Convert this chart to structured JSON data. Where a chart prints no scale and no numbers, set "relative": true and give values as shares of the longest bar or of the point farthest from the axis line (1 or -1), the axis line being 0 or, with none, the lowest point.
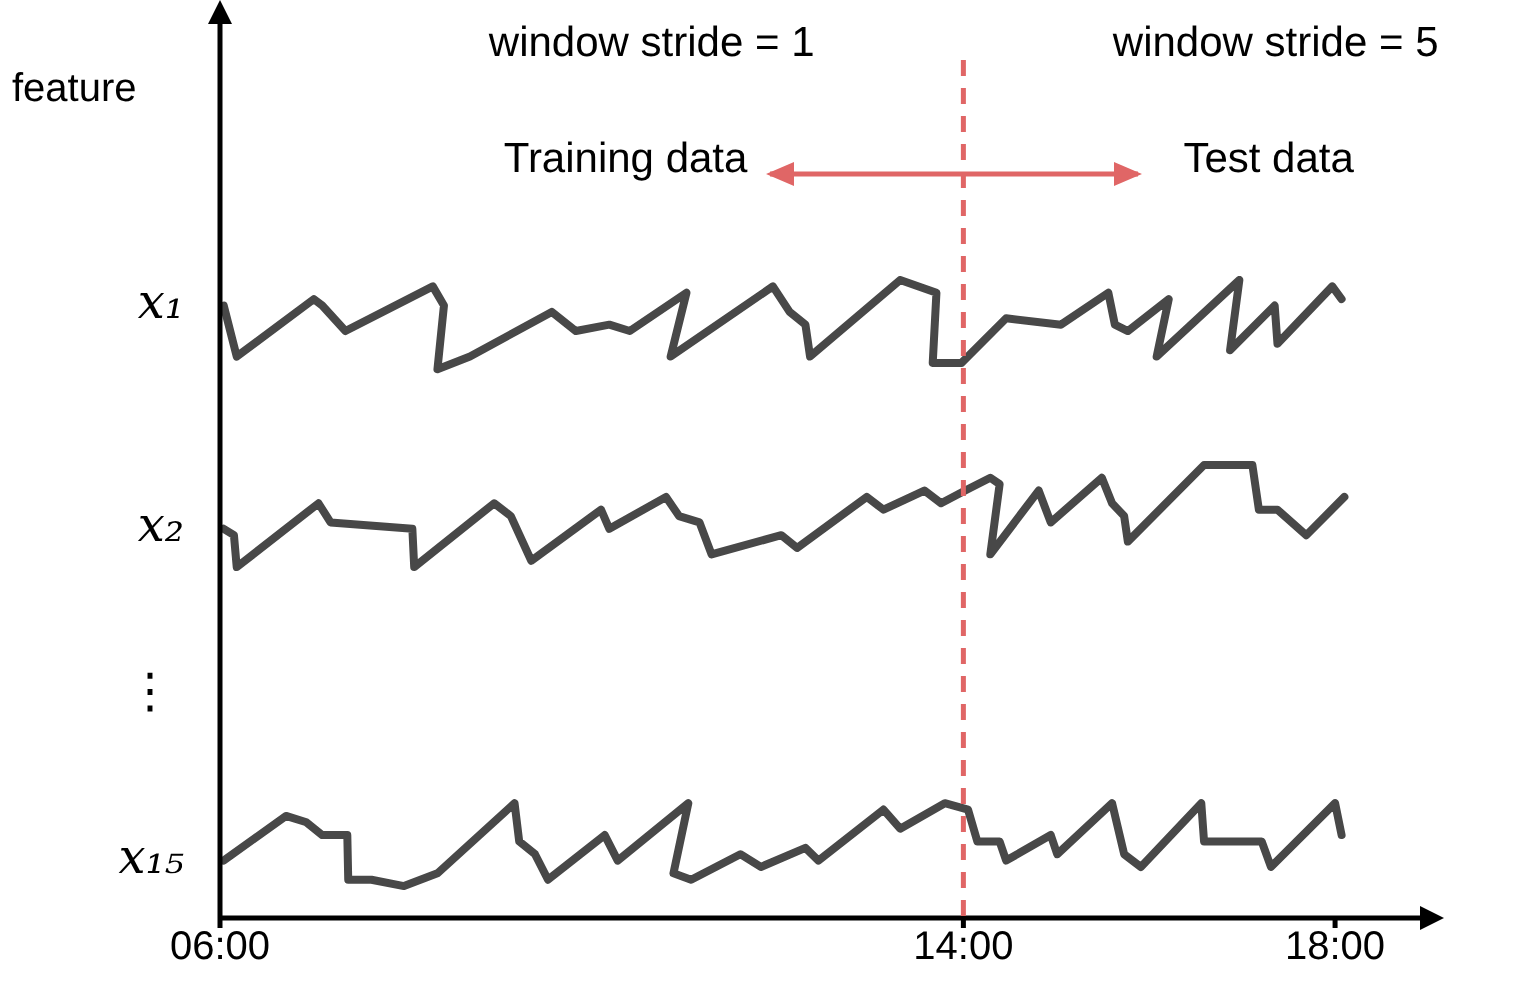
{
  "chart_data": {
    "type": "line",
    "relative": true,
    "ylabel": "feature",
    "xlim": [
      6,
      19
    ],
    "xticks": [
      {
        "value": 6,
        "label": "06:00"
      },
      {
        "value": 14,
        "label": "14:00"
      },
      {
        "value": 18,
        "label": "18:00"
      }
    ],
    "grid": false,
    "legend": false,
    "marker": "none",
    "line_style": "solid",
    "annotations": [
      "window stride = 1",
      "window stride = 5",
      "Training data",
      "Test data",
      "⋮"
    ],
    "ref_lines": [
      {
        "axis": "x",
        "value": 14,
        "label": null,
        "color": "#e06666",
        "line_style": "dashed"
      }
    ],
    "series": [
      {
        "name": "x₁",
        "color": "#484848",
        "x": [
          6.04,
          6.18,
          7.01,
          7.1,
          7.35,
          8.29,
          8.41,
          8.34,
          8.69,
          9.57,
          9.83,
          10.19,
          10.41,
          11.02,
          10.85,
          11.95,
          12.13,
          12.3,
          12.35,
          13.32,
          13.71,
          13.67,
          13.98,
          14.46,
          15.05,
          15.56,
          15.63,
          15.77,
          16.21,
          16.08,
          16.97,
          16.87,
          17.35,
          17.38,
          17.97,
          18.07
        ],
        "values": [
          0.96,
          0.88,
          0.97,
          0.96,
          0.92,
          0.99,
          0.96,
          0.86,
          0.88,
          0.95,
          0.92,
          0.93,
          0.92,
          0.98,
          0.88,
          0.99,
          0.95,
          0.93,
          0.88,
          1.0,
          0.98,
          0.87,
          0.87,
          0.94,
          0.93,
          0.98,
          0.93,
          0.92,
          0.97,
          0.88,
          1.0,
          0.89,
          0.96,
          0.9,
          0.99,
          0.97
        ]
      },
      {
        "name": "x₂",
        "color": "#484848",
        "x": [
          6.04,
          6.15,
          6.18,
          7.06,
          7.19,
          8.07,
          8.09,
          8.95,
          9.13,
          9.35,
          10.1,
          10.19,
          10.8,
          10.94,
          11.16,
          11.29,
          12.04,
          12.21,
          12.96,
          13.14,
          13.58,
          13.76,
          14.02,
          14.29,
          14.39,
          14.29,
          14.81,
          14.94,
          15.49,
          15.6,
          15.73,
          15.77,
          16.59,
          17.11,
          17.18,
          17.38,
          17.69,
          18.1
        ],
        "values": [
          0.61,
          0.6,
          0.55,
          0.65,
          0.62,
          0.61,
          0.55,
          0.65,
          0.63,
          0.56,
          0.64,
          0.61,
          0.66,
          0.63,
          0.62,
          0.57,
          0.6,
          0.58,
          0.66,
          0.64,
          0.67,
          0.65,
          0.67,
          0.69,
          0.68,
          0.57,
          0.67,
          0.62,
          0.69,
          0.65,
          0.63,
          0.59,
          0.71,
          0.71,
          0.64,
          0.64,
          0.6,
          0.66
        ]
      },
      {
        "name": "x₁₅",
        "color": "#484848",
        "x": [
          6.04,
          6.71,
          6.93,
          7.1,
          7.37,
          7.38,
          7.63,
          7.98,
          8.34,
          9.17,
          9.22,
          9.39,
          9.53,
          10.14,
          10.28,
          11.04,
          10.88,
          11.07,
          11.6,
          11.82,
          12.3,
          12.44,
          13.14,
          13.32,
          13.8,
          14.05,
          14.15,
          14.39,
          14.46,
          14.94,
          15.01,
          15.6,
          15.73,
          15.91,
          16.56,
          16.59,
          17.21,
          17.31,
          18.0,
          18.07
        ],
        "values": [
          0.09,
          0.16,
          0.15,
          0.13,
          0.13,
          0.06,
          0.06,
          0.05,
          0.07,
          0.18,
          0.12,
          0.1,
          0.06,
          0.13,
          0.09,
          0.18,
          0.07,
          0.06,
          0.1,
          0.08,
          0.11,
          0.09,
          0.17,
          0.14,
          0.18,
          0.17,
          0.12,
          0.12,
          0.09,
          0.13,
          0.1,
          0.18,
          0.1,
          0.08,
          0.18,
          0.12,
          0.12,
          0.08,
          0.18,
          0.13
        ]
      }
    ]
  }
}
